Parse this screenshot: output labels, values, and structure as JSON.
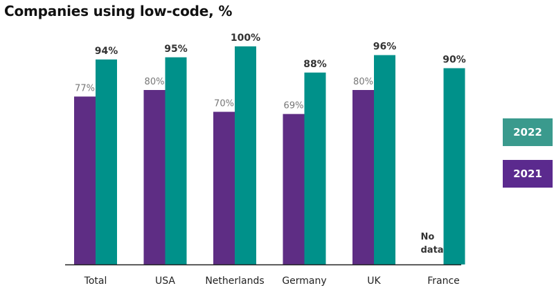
{
  "title": "Companies using low-code, %",
  "legend": [
    {
      "label": "2022",
      "color": "#3a9a8d"
    },
    {
      "label": "2021",
      "color": "#5b2a8e"
    }
  ],
  "chart_data": {
    "type": "bar",
    "title": "Companies using low-code, %",
    "categories": [
      "Total",
      "USA",
      "Netherlands",
      "Germany",
      "UK",
      "France"
    ],
    "series": [
      {
        "name": "2021",
        "color": "#5e2d84",
        "values": [
          77,
          80,
          70,
          69,
          80,
          null
        ],
        "labels": [
          "77%",
          "80%",
          "70%",
          "69%",
          "80%",
          null
        ]
      },
      {
        "name": "2022",
        "color": "#00918a",
        "values": [
          94,
          95,
          100,
          88,
          96,
          90
        ],
        "labels": [
          "94%",
          "95%",
          "100%",
          "88%",
          "96%",
          "90%"
        ]
      }
    ],
    "missing_note": {
      "category": "France",
      "series": "2021",
      "lines": [
        "No",
        "data"
      ]
    },
    "ylim": [
      0,
      100
    ],
    "grid": false,
    "legend_position": "right"
  }
}
